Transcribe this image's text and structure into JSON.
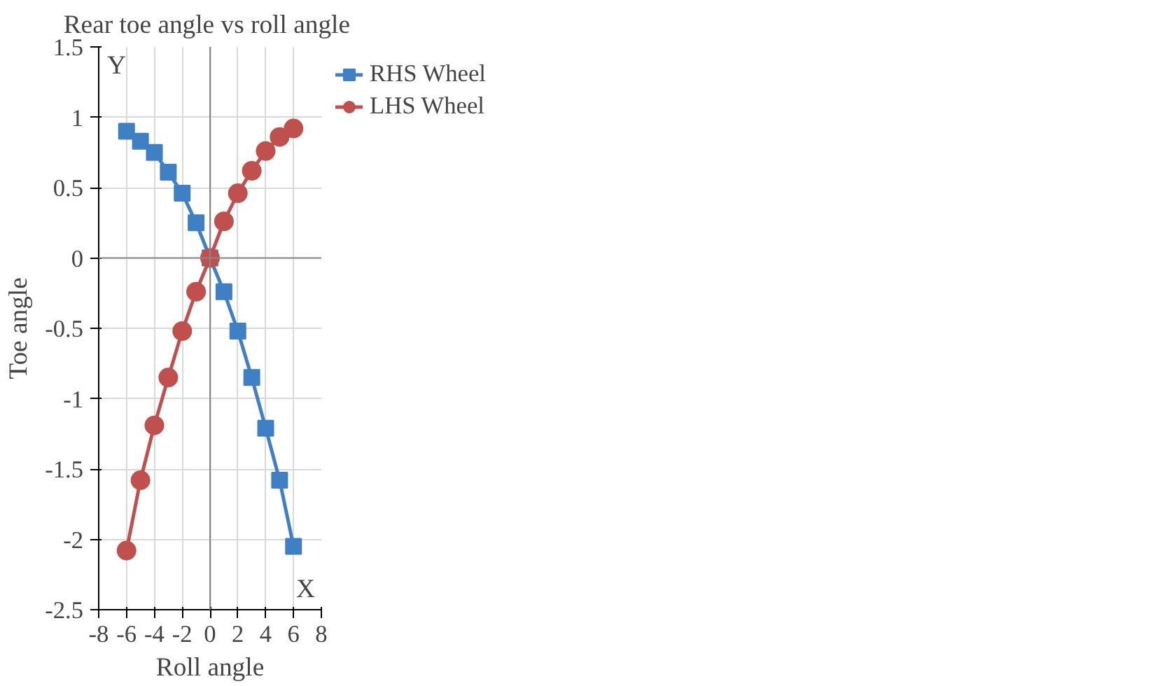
{
  "chart_data": {
    "type": "line",
    "title": "Rear toe angle  vs roll angle",
    "xlabel": "Roll angle",
    "ylabel": "Toe angle",
    "annotations": [
      "Y",
      "X"
    ],
    "x": [
      -6,
      -5,
      -4,
      -3,
      -2,
      -1,
      0,
      1,
      2,
      3,
      4,
      5,
      6
    ],
    "series": [
      {
        "name": "RHS Wheel",
        "color": "#3f7fc4",
        "marker": "square",
        "values": [
          0.9,
          0.83,
          0.75,
          0.61,
          0.46,
          0.25,
          0,
          -0.24,
          -0.52,
          -0.85,
          -1.21,
          -1.58,
          -2.05
        ]
      },
      {
        "name": "LHS Wheel",
        "color": "#c0504d",
        "marker": "circle",
        "values": [
          -2.08,
          -1.58,
          -1.19,
          -0.85,
          -0.52,
          -0.24,
          0,
          0.26,
          0.46,
          0.62,
          0.76,
          0.86,
          0.92
        ]
      }
    ],
    "xlim": [
      -8,
      8
    ],
    "ylim": [
      -2.5,
      1.5
    ],
    "xticks": [
      -8,
      -6,
      -4,
      -2,
      0,
      2,
      4,
      6,
      8
    ],
    "yticks": [
      -2.5,
      -2,
      -1.5,
      -1,
      -0.5,
      0,
      0.5,
      1,
      1.5
    ],
    "grid": true,
    "legend": "top right",
    "line_style": "solid"
  }
}
